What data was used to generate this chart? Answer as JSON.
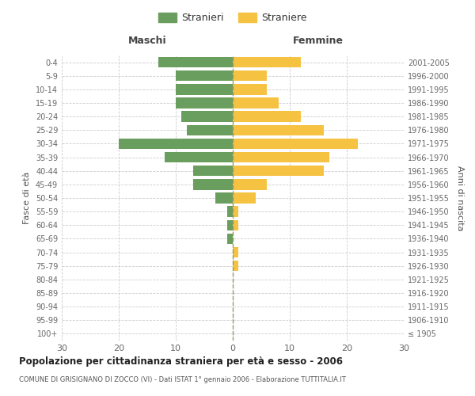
{
  "age_groups": [
    "100+",
    "95-99",
    "90-94",
    "85-89",
    "80-84",
    "75-79",
    "70-74",
    "65-69",
    "60-64",
    "55-59",
    "50-54",
    "45-49",
    "40-44",
    "35-39",
    "30-34",
    "25-29",
    "20-24",
    "15-19",
    "10-14",
    "5-9",
    "0-4"
  ],
  "birth_years": [
    "≤ 1905",
    "1906-1910",
    "1911-1915",
    "1916-1920",
    "1921-1925",
    "1926-1930",
    "1931-1935",
    "1936-1940",
    "1941-1945",
    "1946-1950",
    "1951-1955",
    "1956-1960",
    "1961-1965",
    "1966-1970",
    "1971-1975",
    "1976-1980",
    "1981-1985",
    "1986-1990",
    "1991-1995",
    "1996-2000",
    "2001-2005"
  ],
  "males": [
    0,
    0,
    0,
    0,
    0,
    0,
    0,
    1,
    1,
    1,
    3,
    7,
    7,
    12,
    20,
    8,
    9,
    10,
    10,
    10,
    13
  ],
  "females": [
    0,
    0,
    0,
    0,
    0,
    1,
    1,
    0,
    1,
    1,
    4,
    6,
    16,
    17,
    22,
    16,
    12,
    8,
    6,
    6,
    12
  ],
  "male_color": "#6a9e5e",
  "female_color": "#f5c242",
  "background_color": "#ffffff",
  "grid_color": "#cccccc",
  "title": "Popolazione per cittadinanza straniera per età e sesso - 2006",
  "subtitle": "COMUNE DI GRISIGNANO DI ZOCCO (VI) - Dati ISTAT 1° gennaio 2006 - Elaborazione TUTTITALIA.IT",
  "xlabel_left": "Maschi",
  "xlabel_right": "Femmine",
  "ylabel_left": "Fasce di età",
  "ylabel_right": "Anni di nascita",
  "legend_male": "Stranieri",
  "legend_female": "Straniere",
  "xlim": 30
}
